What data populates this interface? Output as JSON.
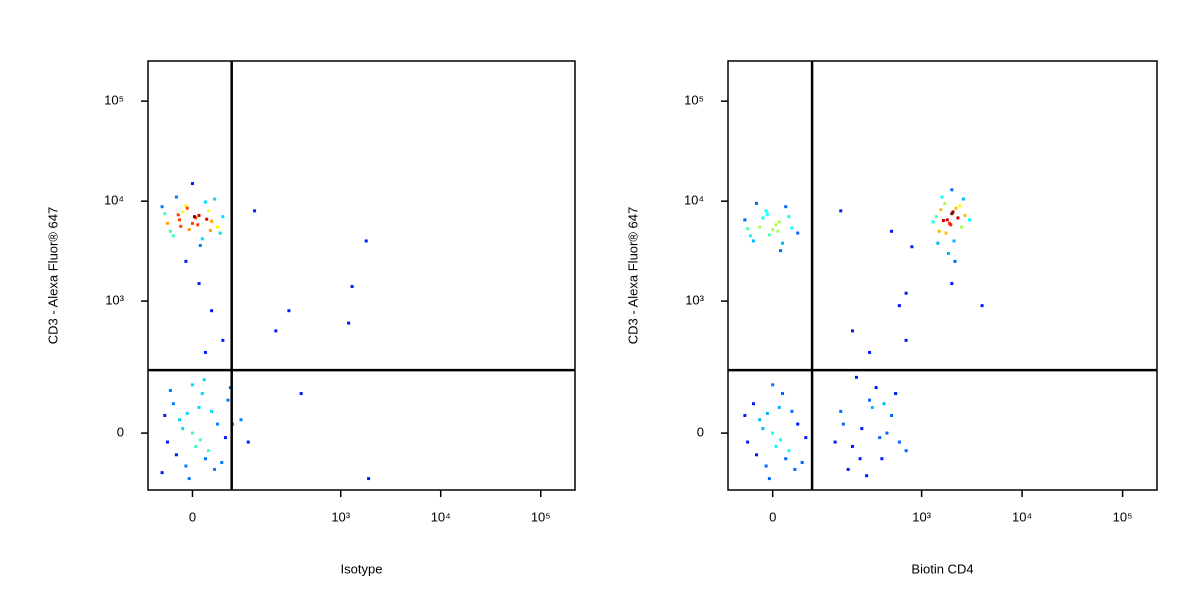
{
  "chart_data": [
    {
      "type": "scatter",
      "xlabel": "Isotype",
      "ylabel": "CD3 - Alexa Fluor® 647",
      "xlim": [
        -80,
        220000
      ],
      "ylim": [
        -165,
        252000
      ],
      "xticks": [
        0,
        {
          "value": 1000,
          "label": "10³"
        },
        {
          "value": 10000,
          "label": "10⁴"
        },
        {
          "value": 100000,
          "label": "10⁵"
        }
      ],
      "yticks": [
        0,
        {
          "value": 1000,
          "label": "10³"
        },
        {
          "value": 10000,
          "label": "10⁴"
        },
        {
          "value": 100000,
          "label": "10⁵"
        }
      ],
      "gates": {
        "x": 68,
        "y": 193
      },
      "x": [
        -20,
        10,
        -35,
        25,
        0,
        -10,
        40,
        -45,
        15,
        -25,
        5,
        30,
        -5,
        20,
        -30,
        50,
        -15,
        8,
        35,
        -40,
        0,
        12,
        -8,
        22,
        -18,
        45,
        -50,
        3,
        28,
        -22,
        10,
        30,
        -10,
        50,
        20,
        0,
        -20,
        25,
        10,
        -40,
        40,
        -10,
        15,
        -30,
        55,
        5,
        -15,
        30,
        -5,
        20,
        -45,
        60,
        0,
        35,
        -25,
        70,
        -35,
        12,
        -8,
        48,
        90,
        110,
        -50,
        18,
        65,
        300,
        1300,
        1800,
        400,
        1900,
        130,
        1200,
        220
      ],
      "y": [
        6500,
        7200,
        5000,
        8000,
        6000,
        9000,
        5500,
        7500,
        4200,
        11000,
        6800,
        6300,
        5200,
        9800,
        4500,
        7000,
        7800,
        5800,
        10500,
        6000,
        15000,
        3600,
        8500,
        6600,
        5600,
        4800,
        8800,
        7000,
        5100,
        7300,
        1500,
        800,
        2500,
        400,
        300,
        0,
        30,
        -40,
        60,
        -20,
        20,
        -80,
        100,
        70,
        -10,
        -30,
        10,
        50,
        -120,
        -60,
        40,
        80,
        130,
        -90,
        -50,
        20,
        110,
        -15,
        45,
        -70,
        30,
        -20,
        -100,
        150,
        120,
        800,
        1400,
        4000,
        100,
        -120,
        8000,
        600,
        500
      ]
    },
    {
      "type": "scatter",
      "xlabel": "Biotin CD4",
      "ylabel": "CD3 - Alexa Fluor® 647",
      "xlim": [
        -80,
        220000
      ],
      "ylim": [
        -165,
        252000
      ],
      "xticks": [
        0,
        {
          "value": 1000,
          "label": "10³"
        },
        {
          "value": 10000,
          "label": "10⁴"
        },
        {
          "value": 100000,
          "label": "10⁵"
        }
      ],
      "yticks": [
        0,
        {
          "value": 1000,
          "label": "10³"
        },
        {
          "value": 10000,
          "label": "10⁴"
        },
        {
          "value": 100000,
          "label": "10⁵"
        }
      ],
      "gates": {
        "x": 68,
        "y": 193
      },
      "x": [
        -20,
        10,
        -35,
        25,
        0,
        -10,
        40,
        -45,
        15,
        -25,
        5,
        30,
        -5,
        20,
        -30,
        -15,
        8,
        -40,
        12,
        -8,
        1800,
        2000,
        1500,
        2200,
        1900,
        1700,
        2500,
        1400,
        2100,
        1600,
        2300,
        1850,
        2700,
        1300,
        2000,
        2400,
        1750,
        3000,
        1550,
        2150,
        1950,
        2600,
        1450,
        2050,
        1650,
        0,
        -20,
        25,
        10,
        -40,
        40,
        -10,
        15,
        -30,
        55,
        5,
        -15,
        30,
        -5,
        20,
        -45,
        0,
        35,
        -25,
        12,
        -8,
        48,
        150,
        200,
        300,
        250,
        400,
        350,
        180,
        500,
        600,
        220,
        450,
        280,
        320,
        700,
        160,
        380,
        550,
        240,
        420,
        130,
        600,
        700,
        800,
        2000,
        4000,
        500,
        300,
        150,
        200,
        700
      ],
      "y": [
        5500,
        6200,
        4500,
        7000,
        5200,
        8000,
        4800,
        6500,
        3800,
        9500,
        5800,
        5400,
        4600,
        8800,
        4000,
        6800,
        5000,
        5300,
        3200,
        7400,
        6500,
        7500,
        5000,
        8500,
        6000,
        9500,
        5500,
        7000,
        4000,
        11000,
        6800,
        3000,
        7200,
        6200,
        13000,
        9000,
        4800,
        6500,
        8200,
        2500,
        5800,
        10500,
        3800,
        7800,
        6400,
        0,
        30,
        -40,
        60,
        -20,
        20,
        -80,
        100,
        70,
        -10,
        -30,
        10,
        50,
        -120,
        -60,
        40,
        130,
        -90,
        -50,
        -15,
        45,
        -70,
        50,
        -30,
        80,
        10,
        -60,
        120,
        -90,
        40,
        -20,
        160,
        0,
        -110,
        60,
        -40,
        20,
        -10,
        100,
        -60,
        70,
        -20,
        900,
        1200,
        3500,
        1500,
        900,
        5000,
        300,
        8000,
        500,
        400
      ]
    }
  ]
}
